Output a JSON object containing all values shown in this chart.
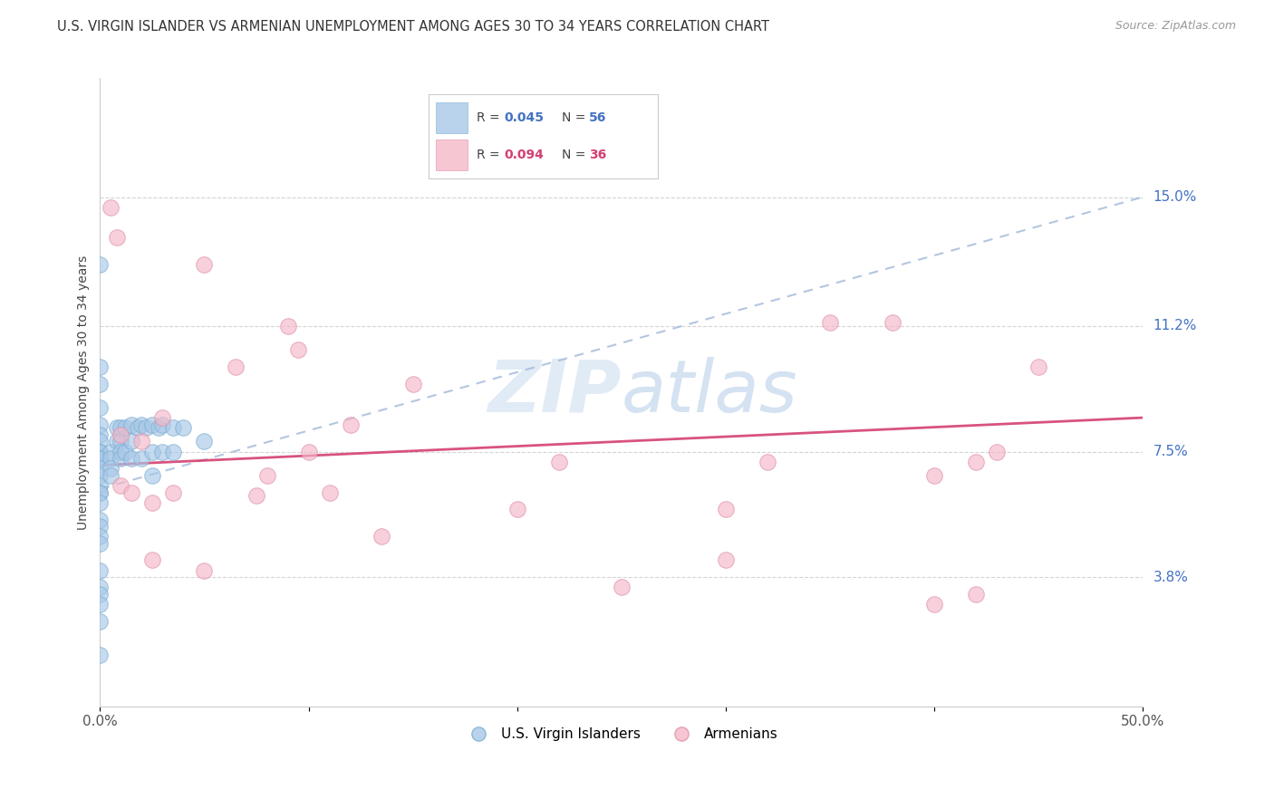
{
  "title": "U.S. VIRGIN ISLANDER VS ARMENIAN UNEMPLOYMENT AMONG AGES 30 TO 34 YEARS CORRELATION CHART",
  "source": "Source: ZipAtlas.com",
  "ylabel": "Unemployment Among Ages 30 to 34 years",
  "xlim": [
    0,
    0.5
  ],
  "ylim": [
    0,
    0.185
  ],
  "xticks": [
    0.0,
    0.1,
    0.2,
    0.3,
    0.4,
    0.5
  ],
  "xticklabels": [
    "0.0%",
    "",
    "",
    "",
    "",
    "50.0%"
  ],
  "ytick_positions": [
    0.038,
    0.075,
    0.112,
    0.15
  ],
  "ytick_labels": [
    "3.8%",
    "7.5%",
    "11.2%",
    "15.0%"
  ],
  "watermark": "ZIPatlas",
  "blue_color": "#a8c8e8",
  "pink_color": "#f4b8c8",
  "blue_line_color": "#a0b8d8",
  "pink_line_color": "#d44070",
  "grid_color": "#d0d0d0",
  "blue_scatter_x": [
    0.0,
    0.0,
    0.0,
    0.0,
    0.0,
    0.0,
    0.0,
    0.0,
    0.0,
    0.0,
    0.0,
    0.0,
    0.0,
    0.0,
    0.0,
    0.0,
    0.0,
    0.0,
    0.0,
    0.0,
    0.0,
    0.0,
    0.0,
    0.0,
    0.0,
    0.0,
    0.0,
    0.005,
    0.005,
    0.005,
    0.005,
    0.008,
    0.008,
    0.01,
    0.01,
    0.01,
    0.01,
    0.012,
    0.012,
    0.015,
    0.015,
    0.015,
    0.018,
    0.02,
    0.02,
    0.022,
    0.025,
    0.025,
    0.025,
    0.028,
    0.03,
    0.03,
    0.035,
    0.035,
    0.04,
    0.05
  ],
  "blue_scatter_y": [
    0.13,
    0.1,
    0.095,
    0.088,
    0.083,
    0.08,
    0.078,
    0.075,
    0.075,
    0.073,
    0.073,
    0.07,
    0.068,
    0.065,
    0.063,
    0.063,
    0.06,
    0.055,
    0.053,
    0.05,
    0.048,
    0.04,
    0.035,
    0.033,
    0.03,
    0.025,
    0.015,
    0.075,
    0.073,
    0.07,
    0.068,
    0.082,
    0.078,
    0.082,
    0.078,
    0.075,
    0.073,
    0.082,
    0.075,
    0.083,
    0.078,
    0.073,
    0.082,
    0.083,
    0.073,
    0.082,
    0.083,
    0.075,
    0.068,
    0.082,
    0.083,
    0.075,
    0.082,
    0.075,
    0.082,
    0.078
  ],
  "pink_scatter_x": [
    0.005,
    0.008,
    0.01,
    0.01,
    0.015,
    0.02,
    0.025,
    0.025,
    0.03,
    0.035,
    0.05,
    0.05,
    0.065,
    0.075,
    0.08,
    0.09,
    0.095,
    0.1,
    0.11,
    0.12,
    0.135,
    0.15,
    0.2,
    0.22,
    0.25,
    0.3,
    0.32,
    0.35,
    0.38,
    0.4,
    0.4,
    0.42,
    0.43,
    0.45,
    0.42,
    0.3
  ],
  "pink_scatter_y": [
    0.147,
    0.138,
    0.08,
    0.065,
    0.063,
    0.078,
    0.06,
    0.043,
    0.085,
    0.063,
    0.13,
    0.04,
    0.1,
    0.062,
    0.068,
    0.112,
    0.105,
    0.075,
    0.063,
    0.083,
    0.05,
    0.095,
    0.058,
    0.072,
    0.035,
    0.043,
    0.072,
    0.113,
    0.113,
    0.03,
    0.068,
    0.033,
    0.075,
    0.1,
    0.072,
    0.058
  ],
  "blue_line_x": [
    0.0,
    0.5
  ],
  "blue_line_y": [
    0.064,
    0.15
  ],
  "pink_line_x": [
    0.0,
    0.5
  ],
  "pink_line_y": [
    0.071,
    0.085
  ]
}
